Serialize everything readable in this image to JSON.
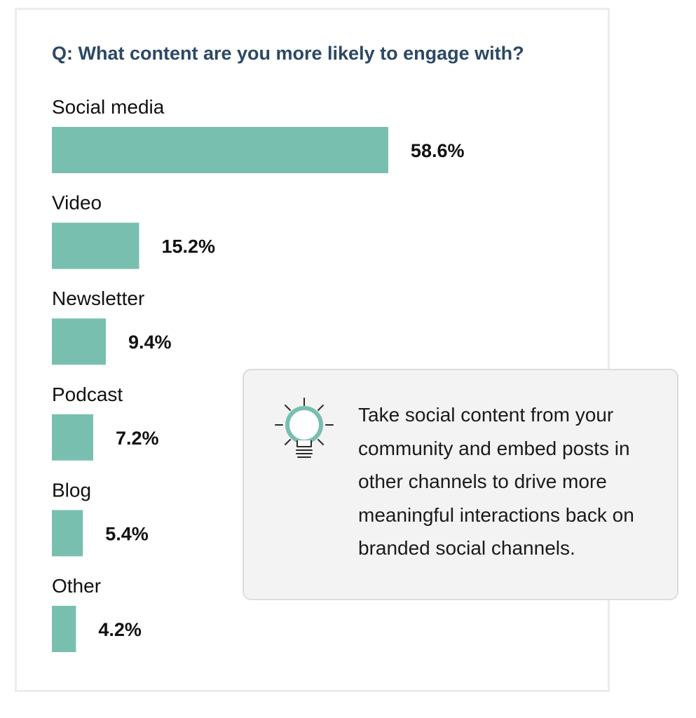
{
  "chart_data": {
    "type": "bar",
    "orientation": "horizontal",
    "title": "Q: What content are you more likely to engage with?",
    "categories": [
      "Social media",
      "Video",
      "Newsletter",
      "Podcast",
      "Blog",
      "Other"
    ],
    "values": [
      58.6,
      15.2,
      9.4,
      7.2,
      5.4,
      4.2
    ],
    "value_labels": [
      "58.6%",
      "15.2%",
      "9.4%",
      "7.2%",
      "5.4%",
      "4.2%"
    ],
    "unit": "%",
    "xlim": [
      0,
      100
    ],
    "xlabel": "",
    "ylabel": "",
    "grid": false,
    "bar_color": "#79bfb0"
  },
  "callout": {
    "icon": "lightbulb-icon",
    "text": "Take social content from your community and embed posts in other channels to drive more meaningful interactions back on branded social channels."
  },
  "colors": {
    "title": "#2c4865",
    "bar": "#79bfb0",
    "callout_background": "#f4f3f4"
  }
}
